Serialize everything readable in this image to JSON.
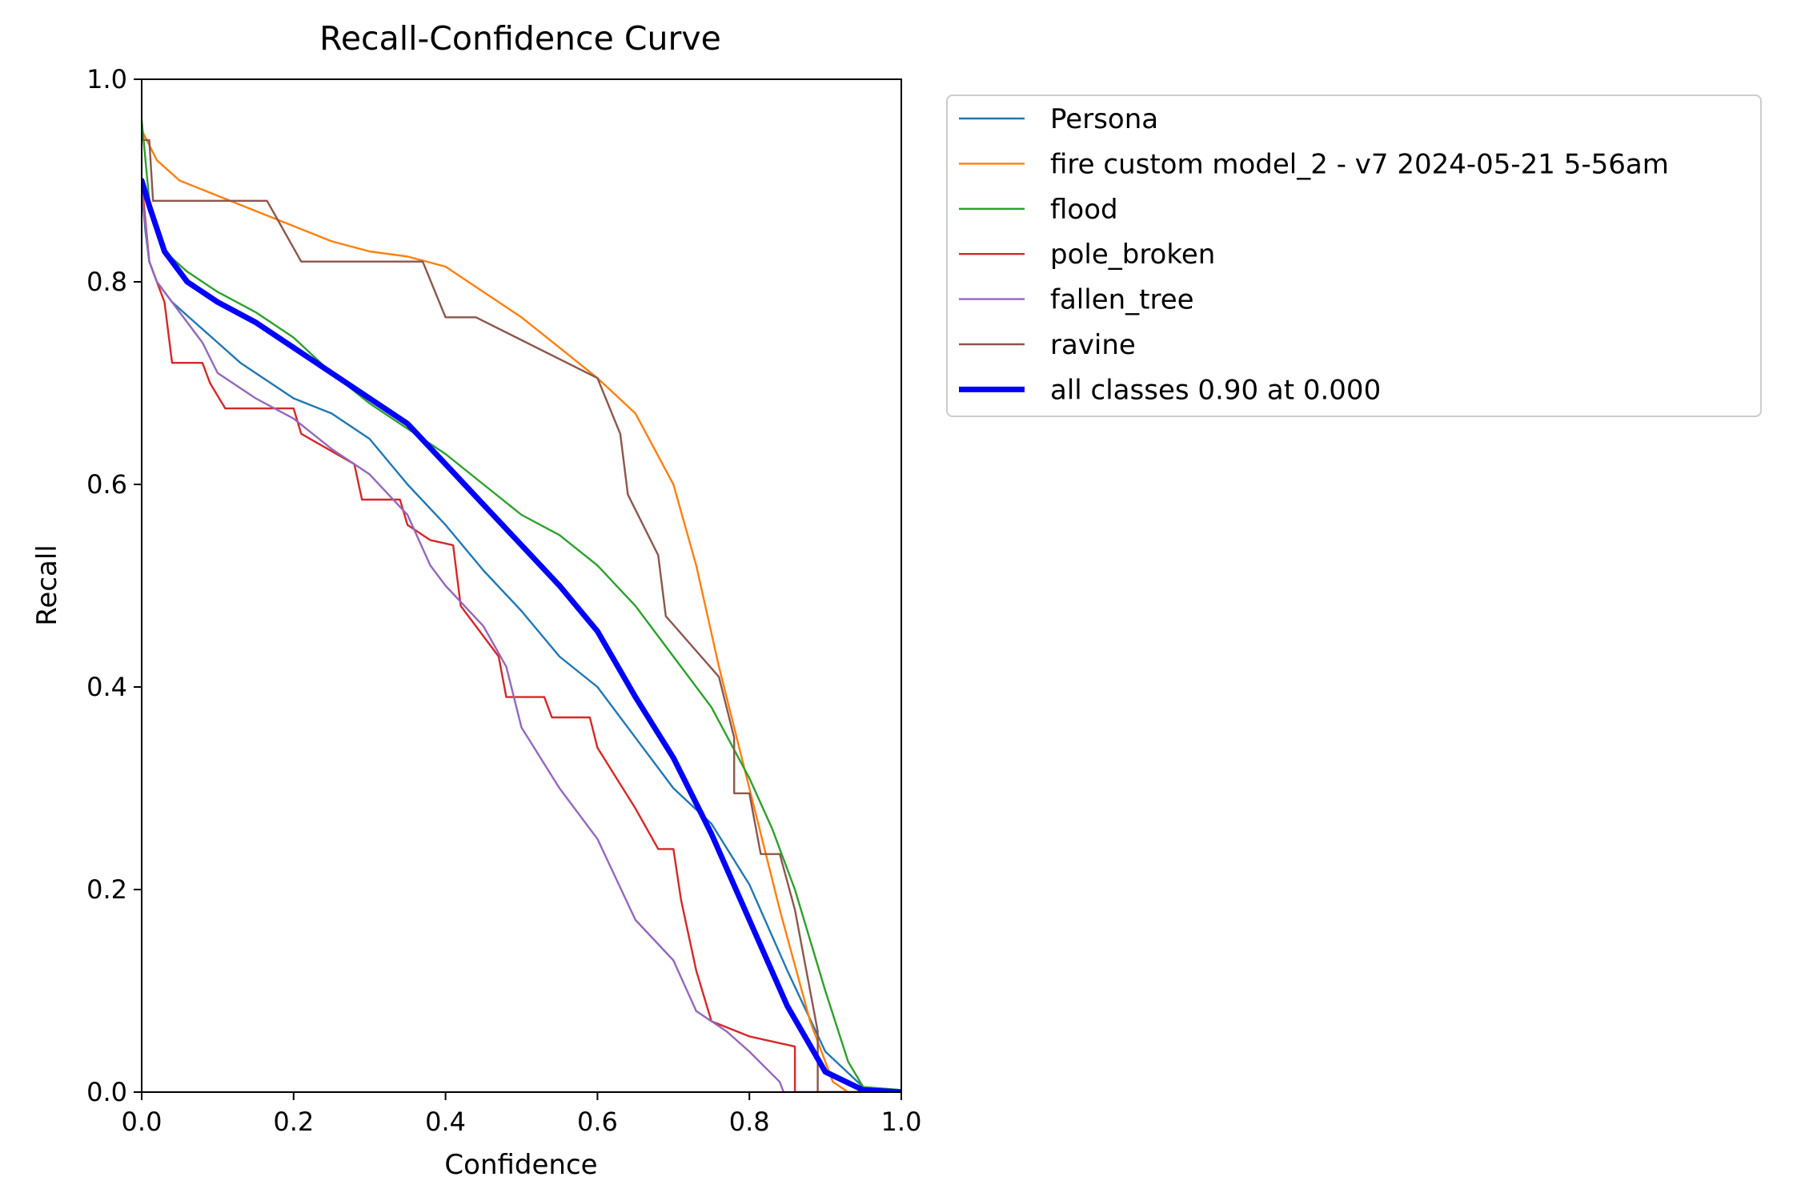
{
  "chart_data": {
    "type": "line",
    "title": "Recall-Confidence Curve",
    "xlabel": "Confidence",
    "ylabel": "Recall",
    "xlim": [
      0,
      1
    ],
    "ylim": [
      0,
      1
    ],
    "x_ticks": [
      "0.0",
      "0.2",
      "0.4",
      "0.6",
      "0.8",
      "1.0"
    ],
    "y_ticks": [
      "0.0",
      "0.2",
      "0.4",
      "0.6",
      "0.8",
      "1.0"
    ],
    "grid": false,
    "legend_position": "outside-upper-right",
    "series": [
      {
        "name": "Persona",
        "color": "#1f77b4",
        "points": [
          [
            0,
            0.89
          ],
          [
            0.005,
            0.85
          ],
          [
            0.01,
            0.82
          ],
          [
            0.02,
            0.8
          ],
          [
            0.04,
            0.78
          ],
          [
            0.07,
            0.76
          ],
          [
            0.1,
            0.74
          ],
          [
            0.13,
            0.72
          ],
          [
            0.17,
            0.7
          ],
          [
            0.2,
            0.685
          ],
          [
            0.25,
            0.67
          ],
          [
            0.3,
            0.645
          ],
          [
            0.35,
            0.6
          ],
          [
            0.4,
            0.56
          ],
          [
            0.45,
            0.515
          ],
          [
            0.5,
            0.475
          ],
          [
            0.55,
            0.43
          ],
          [
            0.6,
            0.4
          ],
          [
            0.65,
            0.35
          ],
          [
            0.7,
            0.3
          ],
          [
            0.75,
            0.265
          ],
          [
            0.8,
            0.205
          ],
          [
            0.85,
            0.12
          ],
          [
            0.9,
            0.04
          ],
          [
            0.95,
            0.005
          ],
          [
            1.0,
            0.002
          ]
        ]
      },
      {
        "name": "fire custom model_2 - v7 2024-05-21 5-56am",
        "color": "#ff7f0e",
        "points": [
          [
            0,
            0.95
          ],
          [
            0.02,
            0.92
          ],
          [
            0.05,
            0.9
          ],
          [
            0.1,
            0.885
          ],
          [
            0.15,
            0.87
          ],
          [
            0.2,
            0.855
          ],
          [
            0.25,
            0.84
          ],
          [
            0.3,
            0.83
          ],
          [
            0.35,
            0.825
          ],
          [
            0.4,
            0.815
          ],
          [
            0.45,
            0.79
          ],
          [
            0.5,
            0.765
          ],
          [
            0.55,
            0.735
          ],
          [
            0.6,
            0.705
          ],
          [
            0.65,
            0.67
          ],
          [
            0.7,
            0.6
          ],
          [
            0.73,
            0.52
          ],
          [
            0.76,
            0.42
          ],
          [
            0.8,
            0.3
          ],
          [
            0.84,
            0.18
          ],
          [
            0.88,
            0.07
          ],
          [
            0.91,
            0.01
          ],
          [
            0.93,
            0.0
          ],
          [
            1.0,
            0.0
          ]
        ]
      },
      {
        "name": "flood",
        "color": "#2ca02c",
        "points": [
          [
            0,
            0.96
          ],
          [
            0.01,
            0.88
          ],
          [
            0.03,
            0.83
          ],
          [
            0.06,
            0.81
          ],
          [
            0.1,
            0.79
          ],
          [
            0.15,
            0.77
          ],
          [
            0.2,
            0.745
          ],
          [
            0.25,
            0.71
          ],
          [
            0.3,
            0.68
          ],
          [
            0.35,
            0.655
          ],
          [
            0.4,
            0.63
          ],
          [
            0.45,
            0.6
          ],
          [
            0.5,
            0.57
          ],
          [
            0.55,
            0.55
          ],
          [
            0.6,
            0.52
          ],
          [
            0.65,
            0.48
          ],
          [
            0.7,
            0.43
          ],
          [
            0.75,
            0.38
          ],
          [
            0.8,
            0.31
          ],
          [
            0.83,
            0.26
          ],
          [
            0.86,
            0.2
          ],
          [
            0.9,
            0.1
          ],
          [
            0.93,
            0.03
          ],
          [
            0.95,
            0.005
          ],
          [
            1.0,
            0.002
          ]
        ]
      },
      {
        "name": "pole_broken",
        "color": "#d62728",
        "points": [
          [
            0,
            0.9
          ],
          [
            0.01,
            0.82
          ],
          [
            0.03,
            0.78
          ],
          [
            0.04,
            0.72
          ],
          [
            0.08,
            0.72
          ],
          [
            0.09,
            0.7
          ],
          [
            0.11,
            0.675
          ],
          [
            0.2,
            0.675
          ],
          [
            0.21,
            0.65
          ],
          [
            0.28,
            0.62
          ],
          [
            0.29,
            0.585
          ],
          [
            0.34,
            0.585
          ],
          [
            0.35,
            0.56
          ],
          [
            0.38,
            0.545
          ],
          [
            0.41,
            0.54
          ],
          [
            0.42,
            0.48
          ],
          [
            0.47,
            0.43
          ],
          [
            0.48,
            0.39
          ],
          [
            0.53,
            0.39
          ],
          [
            0.54,
            0.37
          ],
          [
            0.59,
            0.37
          ],
          [
            0.6,
            0.34
          ],
          [
            0.65,
            0.28
          ],
          [
            0.68,
            0.24
          ],
          [
            0.7,
            0.24
          ],
          [
            0.71,
            0.19
          ],
          [
            0.73,
            0.12
          ],
          [
            0.75,
            0.07
          ],
          [
            0.8,
            0.055
          ],
          [
            0.86,
            0.045
          ],
          [
            0.86,
            0.0
          ],
          [
            1.0,
            0.0
          ]
        ]
      },
      {
        "name": "fallen_tree",
        "color": "#9467bd",
        "points": [
          [
            0,
            0.89
          ],
          [
            0.01,
            0.82
          ],
          [
            0.02,
            0.8
          ],
          [
            0.05,
            0.77
          ],
          [
            0.08,
            0.74
          ],
          [
            0.1,
            0.71
          ],
          [
            0.15,
            0.685
          ],
          [
            0.2,
            0.665
          ],
          [
            0.25,
            0.635
          ],
          [
            0.3,
            0.61
          ],
          [
            0.35,
            0.57
          ],
          [
            0.38,
            0.52
          ],
          [
            0.4,
            0.5
          ],
          [
            0.45,
            0.46
          ],
          [
            0.48,
            0.42
          ],
          [
            0.5,
            0.36
          ],
          [
            0.55,
            0.3
          ],
          [
            0.6,
            0.25
          ],
          [
            0.65,
            0.17
          ],
          [
            0.7,
            0.13
          ],
          [
            0.73,
            0.08
          ],
          [
            0.77,
            0.06
          ],
          [
            0.8,
            0.04
          ],
          [
            0.84,
            0.01
          ],
          [
            0.845,
            0.0
          ],
          [
            1.0,
            0.0
          ]
        ]
      },
      {
        "name": "ravine",
        "color": "#8c564b",
        "points": [
          [
            0,
            0.94
          ],
          [
            0.01,
            0.94
          ],
          [
            0.015,
            0.88
          ],
          [
            0.165,
            0.88
          ],
          [
            0.21,
            0.82
          ],
          [
            0.37,
            0.82
          ],
          [
            0.4,
            0.765
          ],
          [
            0.44,
            0.765
          ],
          [
            0.6,
            0.705
          ],
          [
            0.63,
            0.65
          ],
          [
            0.64,
            0.59
          ],
          [
            0.68,
            0.53
          ],
          [
            0.69,
            0.47
          ],
          [
            0.76,
            0.41
          ],
          [
            0.78,
            0.35
          ],
          [
            0.78,
            0.295
          ],
          [
            0.8,
            0.295
          ],
          [
            0.815,
            0.235
          ],
          [
            0.84,
            0.235
          ],
          [
            0.86,
            0.18
          ],
          [
            0.89,
            0.06
          ],
          [
            0.89,
            0.0
          ],
          [
            1.0,
            0.0
          ]
        ]
      },
      {
        "name": "all classes 0.90 at 0.000",
        "color": "#0000ff",
        "width": 7,
        "points": [
          [
            0,
            0.9
          ],
          [
            0.01,
            0.875
          ],
          [
            0.03,
            0.83
          ],
          [
            0.06,
            0.8
          ],
          [
            0.1,
            0.78
          ],
          [
            0.15,
            0.76
          ],
          [
            0.2,
            0.735
          ],
          [
            0.25,
            0.71
          ],
          [
            0.3,
            0.685
          ],
          [
            0.35,
            0.66
          ],
          [
            0.4,
            0.62
          ],
          [
            0.45,
            0.58
          ],
          [
            0.5,
            0.54
          ],
          [
            0.55,
            0.5
          ],
          [
            0.6,
            0.455
          ],
          [
            0.65,
            0.39
          ],
          [
            0.7,
            0.33
          ],
          [
            0.75,
            0.255
          ],
          [
            0.8,
            0.17
          ],
          [
            0.85,
            0.085
          ],
          [
            0.9,
            0.02
          ],
          [
            0.95,
            0.002
          ],
          [
            1.0,
            0.0
          ]
        ]
      }
    ]
  }
}
